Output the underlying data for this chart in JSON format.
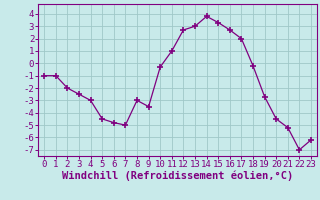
{
  "x": [
    0,
    1,
    2,
    3,
    4,
    5,
    6,
    7,
    8,
    9,
    10,
    11,
    12,
    13,
    14,
    15,
    16,
    17,
    18,
    19,
    20,
    21,
    22,
    23
  ],
  "y": [
    -1,
    -1,
    -2,
    -2.5,
    -3,
    -4.5,
    -4.8,
    -5,
    -3,
    -3.5,
    -0.3,
    1,
    2.7,
    3,
    3.8,
    3.3,
    2.7,
    2,
    -0.2,
    -2.7,
    -4.5,
    -5.2,
    -7,
    -6.2
  ],
  "line_color": "#800080",
  "marker_color": "#800080",
  "bg_color": "#c8eaea",
  "grid_color": "#a0c8c8",
  "xlabel": "Windchill (Refroidissement éolien,°C)",
  "ylim": [
    -7.5,
    4.8
  ],
  "xlim": [
    -0.5,
    23.5
  ],
  "yticks": [
    -7,
    -6,
    -5,
    -4,
    -3,
    -2,
    -1,
    0,
    1,
    2,
    3,
    4
  ],
  "xticks": [
    0,
    1,
    2,
    3,
    4,
    5,
    6,
    7,
    8,
    9,
    10,
    11,
    12,
    13,
    14,
    15,
    16,
    17,
    18,
    19,
    20,
    21,
    22,
    23
  ],
  "tick_color": "#800080",
  "label_color": "#800080",
  "axis_color": "#800080",
  "font_size": 6.5,
  "xlabel_fontsize": 7.5
}
